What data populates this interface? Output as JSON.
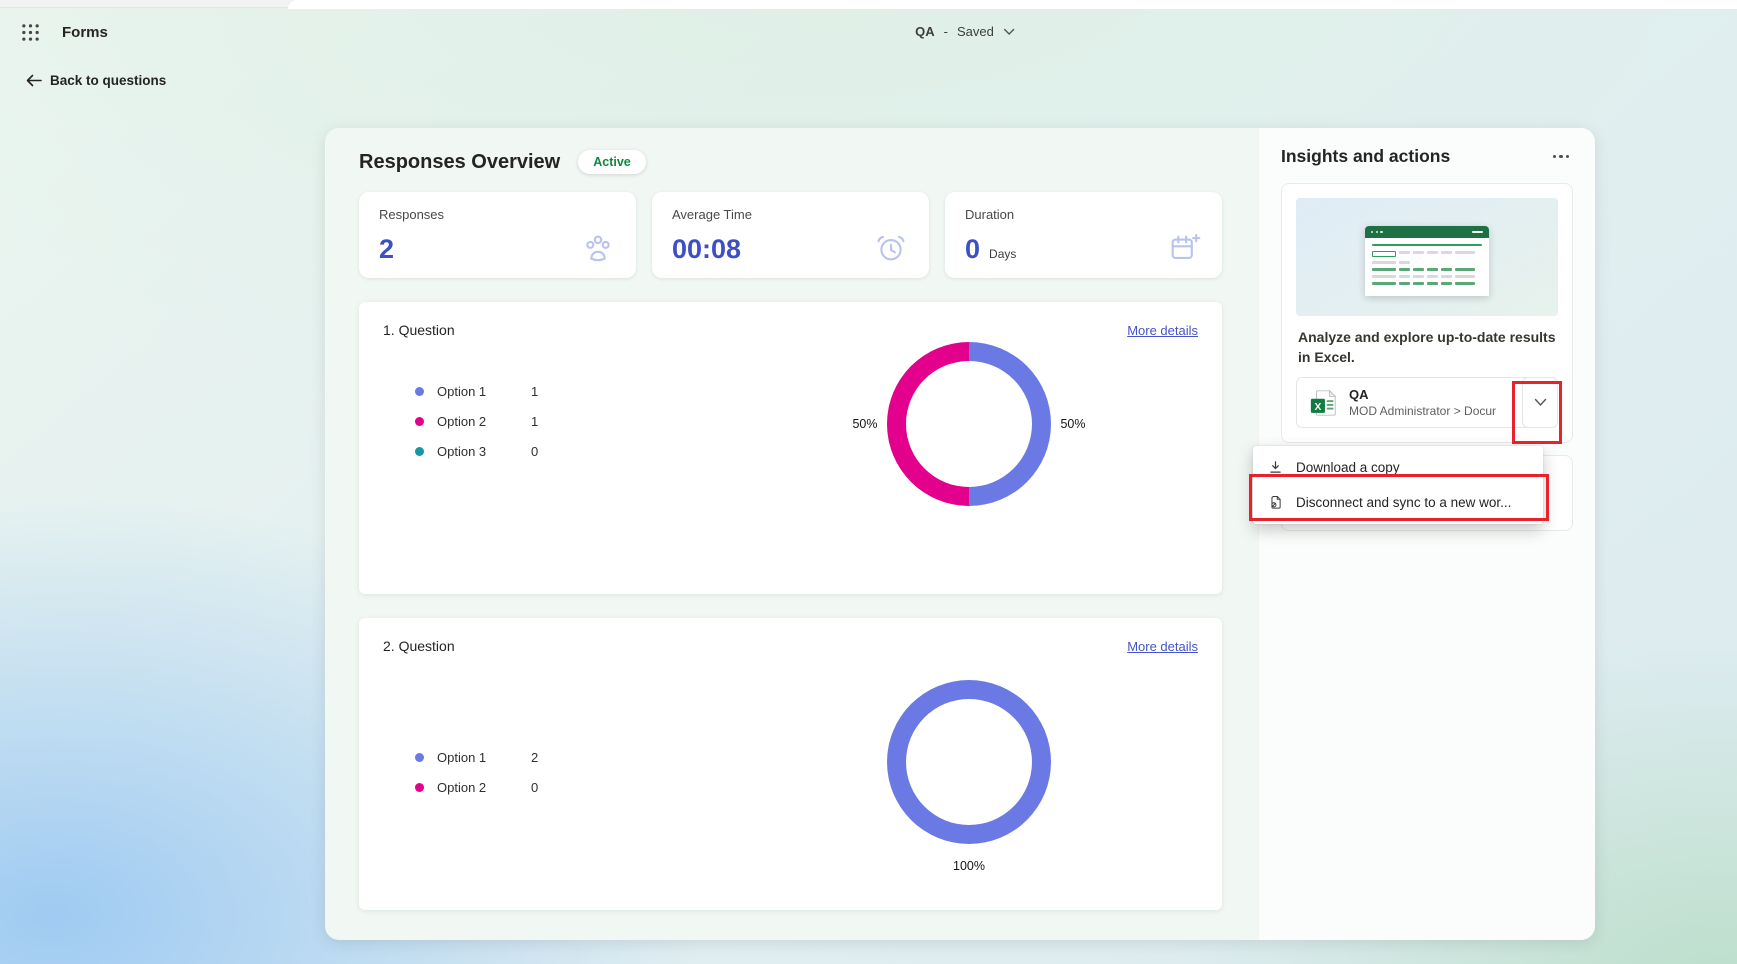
{
  "app": {
    "title": "Forms",
    "doc_name": "QA",
    "separator": "-",
    "save_status": "Saved",
    "back_link": "Back to questions"
  },
  "overview": {
    "title": "Responses Overview",
    "status_badge": "Active",
    "stats": [
      {
        "label": "Responses",
        "value": "2",
        "icon": "people-icon"
      },
      {
        "label": "Average Time",
        "value": "00:08",
        "icon": "alarm-clock-icon"
      },
      {
        "label": "Duration",
        "value": "0",
        "unit": "Days",
        "icon": "calendar-icon"
      }
    ]
  },
  "questions": [
    {
      "title": "1. Question",
      "more_details": "More details"
    },
    {
      "title": "2. Question",
      "more_details": "More details"
    }
  ],
  "chart_data": [
    {
      "type": "donut",
      "title": "1. Question",
      "categories": [
        "Option 1",
        "Option 2",
        "Option 3"
      ],
      "values": [
        1,
        1,
        0
      ],
      "colors": [
        "#6b79e5",
        "#e3008c",
        "#14999e"
      ],
      "percent_labels": [
        "50%",
        "50%"
      ],
      "legend_position": "left"
    },
    {
      "type": "donut",
      "title": "2. Question",
      "categories": [
        "Option 1",
        "Option 2"
      ],
      "values": [
        2,
        0
      ],
      "colors": [
        "#6b79e5",
        "#e3008c"
      ],
      "percent_labels": [
        "100%"
      ],
      "legend_position": "left"
    }
  ],
  "insights": {
    "title": "Insights and actions",
    "excel_card": {
      "description": "Analyze and explore up-to-date results in Excel.",
      "file_name": "QA",
      "file_path": "MOD Administrator > Docur",
      "file_icon_letter": "X"
    },
    "menu": {
      "items": [
        {
          "label": "Download a copy",
          "icon": "download-icon"
        },
        {
          "label": "Disconnect and sync to a new wor...",
          "icon": "disconnect-workbook-icon"
        }
      ]
    }
  },
  "annotations": {
    "highlight_color": "#e8212b"
  }
}
